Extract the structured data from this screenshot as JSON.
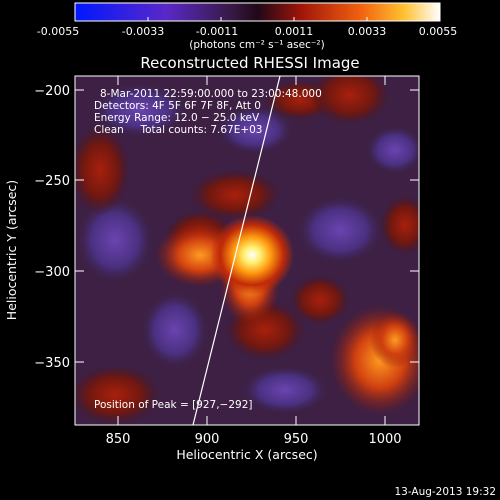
{
  "colorbar": {
    "tick_labels": [
      "-0.0055",
      "-0.0033",
      "-0.0011",
      "0.0011",
      "0.0033",
      "0.0055"
    ],
    "units": "(photons cm⁻² s⁻¹ asec⁻²)"
  },
  "plot": {
    "title": "Reconstructed RHESSI Image",
    "xlabel": "Heliocentric X (arcsec)",
    "ylabel": "Heliocentric Y (arcsec)",
    "x_ticks": [
      "850",
      "900",
      "950",
      "1000"
    ],
    "y_ticks": [
      "−200",
      "−250",
      "−300",
      "−350"
    ],
    "info_lines": [
      "8-Mar-2011 22:59:00.000 to 23:00:48.000",
      "Detectors: 4F 5F 6F 7F 8F, Att 0",
      "Energy Range: 12.0 − 25.0 keV",
      "Clean     Total counts: 7.67E+03"
    ],
    "peak_label": "Position of Peak = [927,−292]"
  },
  "footer": {
    "timestamp": "13-Aug-2013 19:32"
  },
  "colors": {
    "background": "#000000",
    "text": "#ffffff"
  }
}
